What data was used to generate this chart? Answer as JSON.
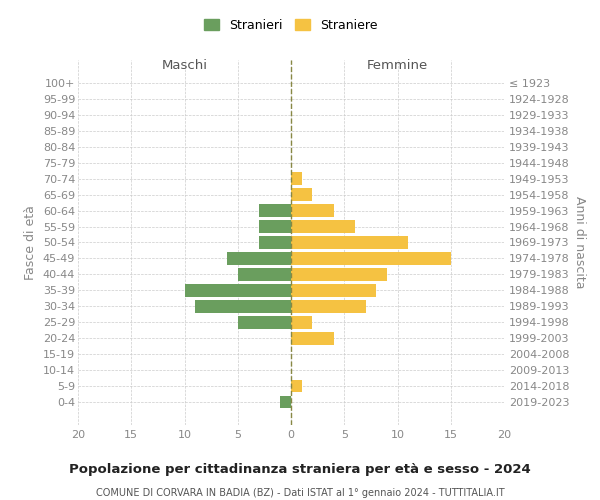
{
  "age_groups": [
    "100+",
    "95-99",
    "90-94",
    "85-89",
    "80-84",
    "75-79",
    "70-74",
    "65-69",
    "60-64",
    "55-59",
    "50-54",
    "45-49",
    "40-44",
    "35-39",
    "30-34",
    "25-29",
    "20-24",
    "15-19",
    "10-14",
    "5-9",
    "0-4"
  ],
  "birth_years": [
    "≤ 1923",
    "1924-1928",
    "1929-1933",
    "1934-1938",
    "1939-1943",
    "1944-1948",
    "1949-1953",
    "1954-1958",
    "1959-1963",
    "1964-1968",
    "1969-1973",
    "1974-1978",
    "1979-1983",
    "1984-1988",
    "1989-1993",
    "1994-1998",
    "1999-2003",
    "2004-2008",
    "2009-2013",
    "2014-2018",
    "2019-2023"
  ],
  "males": [
    0,
    0,
    0,
    0,
    0,
    0,
    0,
    0,
    3,
    3,
    3,
    6,
    5,
    10,
    9,
    5,
    0,
    0,
    0,
    0,
    1
  ],
  "females": [
    0,
    0,
    0,
    0,
    0,
    0,
    1,
    2,
    4,
    6,
    11,
    15,
    9,
    8,
    7,
    2,
    4,
    0,
    0,
    1,
    0
  ],
  "male_color": "#6a9e5e",
  "female_color": "#f5c242",
  "background_color": "#ffffff",
  "grid_color": "#cccccc",
  "title": "Popolazione per cittadinanza straniera per età e sesso - 2024",
  "subtitle": "COMUNE DI CORVARA IN BADIA (BZ) - Dati ISTAT al 1° gennaio 2024 - TUTTITALIA.IT",
  "left_label": "Maschi",
  "right_label": "Femmine",
  "ylabel": "Fasce di età",
  "ylabel_right": "Anni di nascita",
  "legend_male": "Stranieri",
  "legend_female": "Straniere",
  "xlim": 20,
  "bar_height": 0.8
}
